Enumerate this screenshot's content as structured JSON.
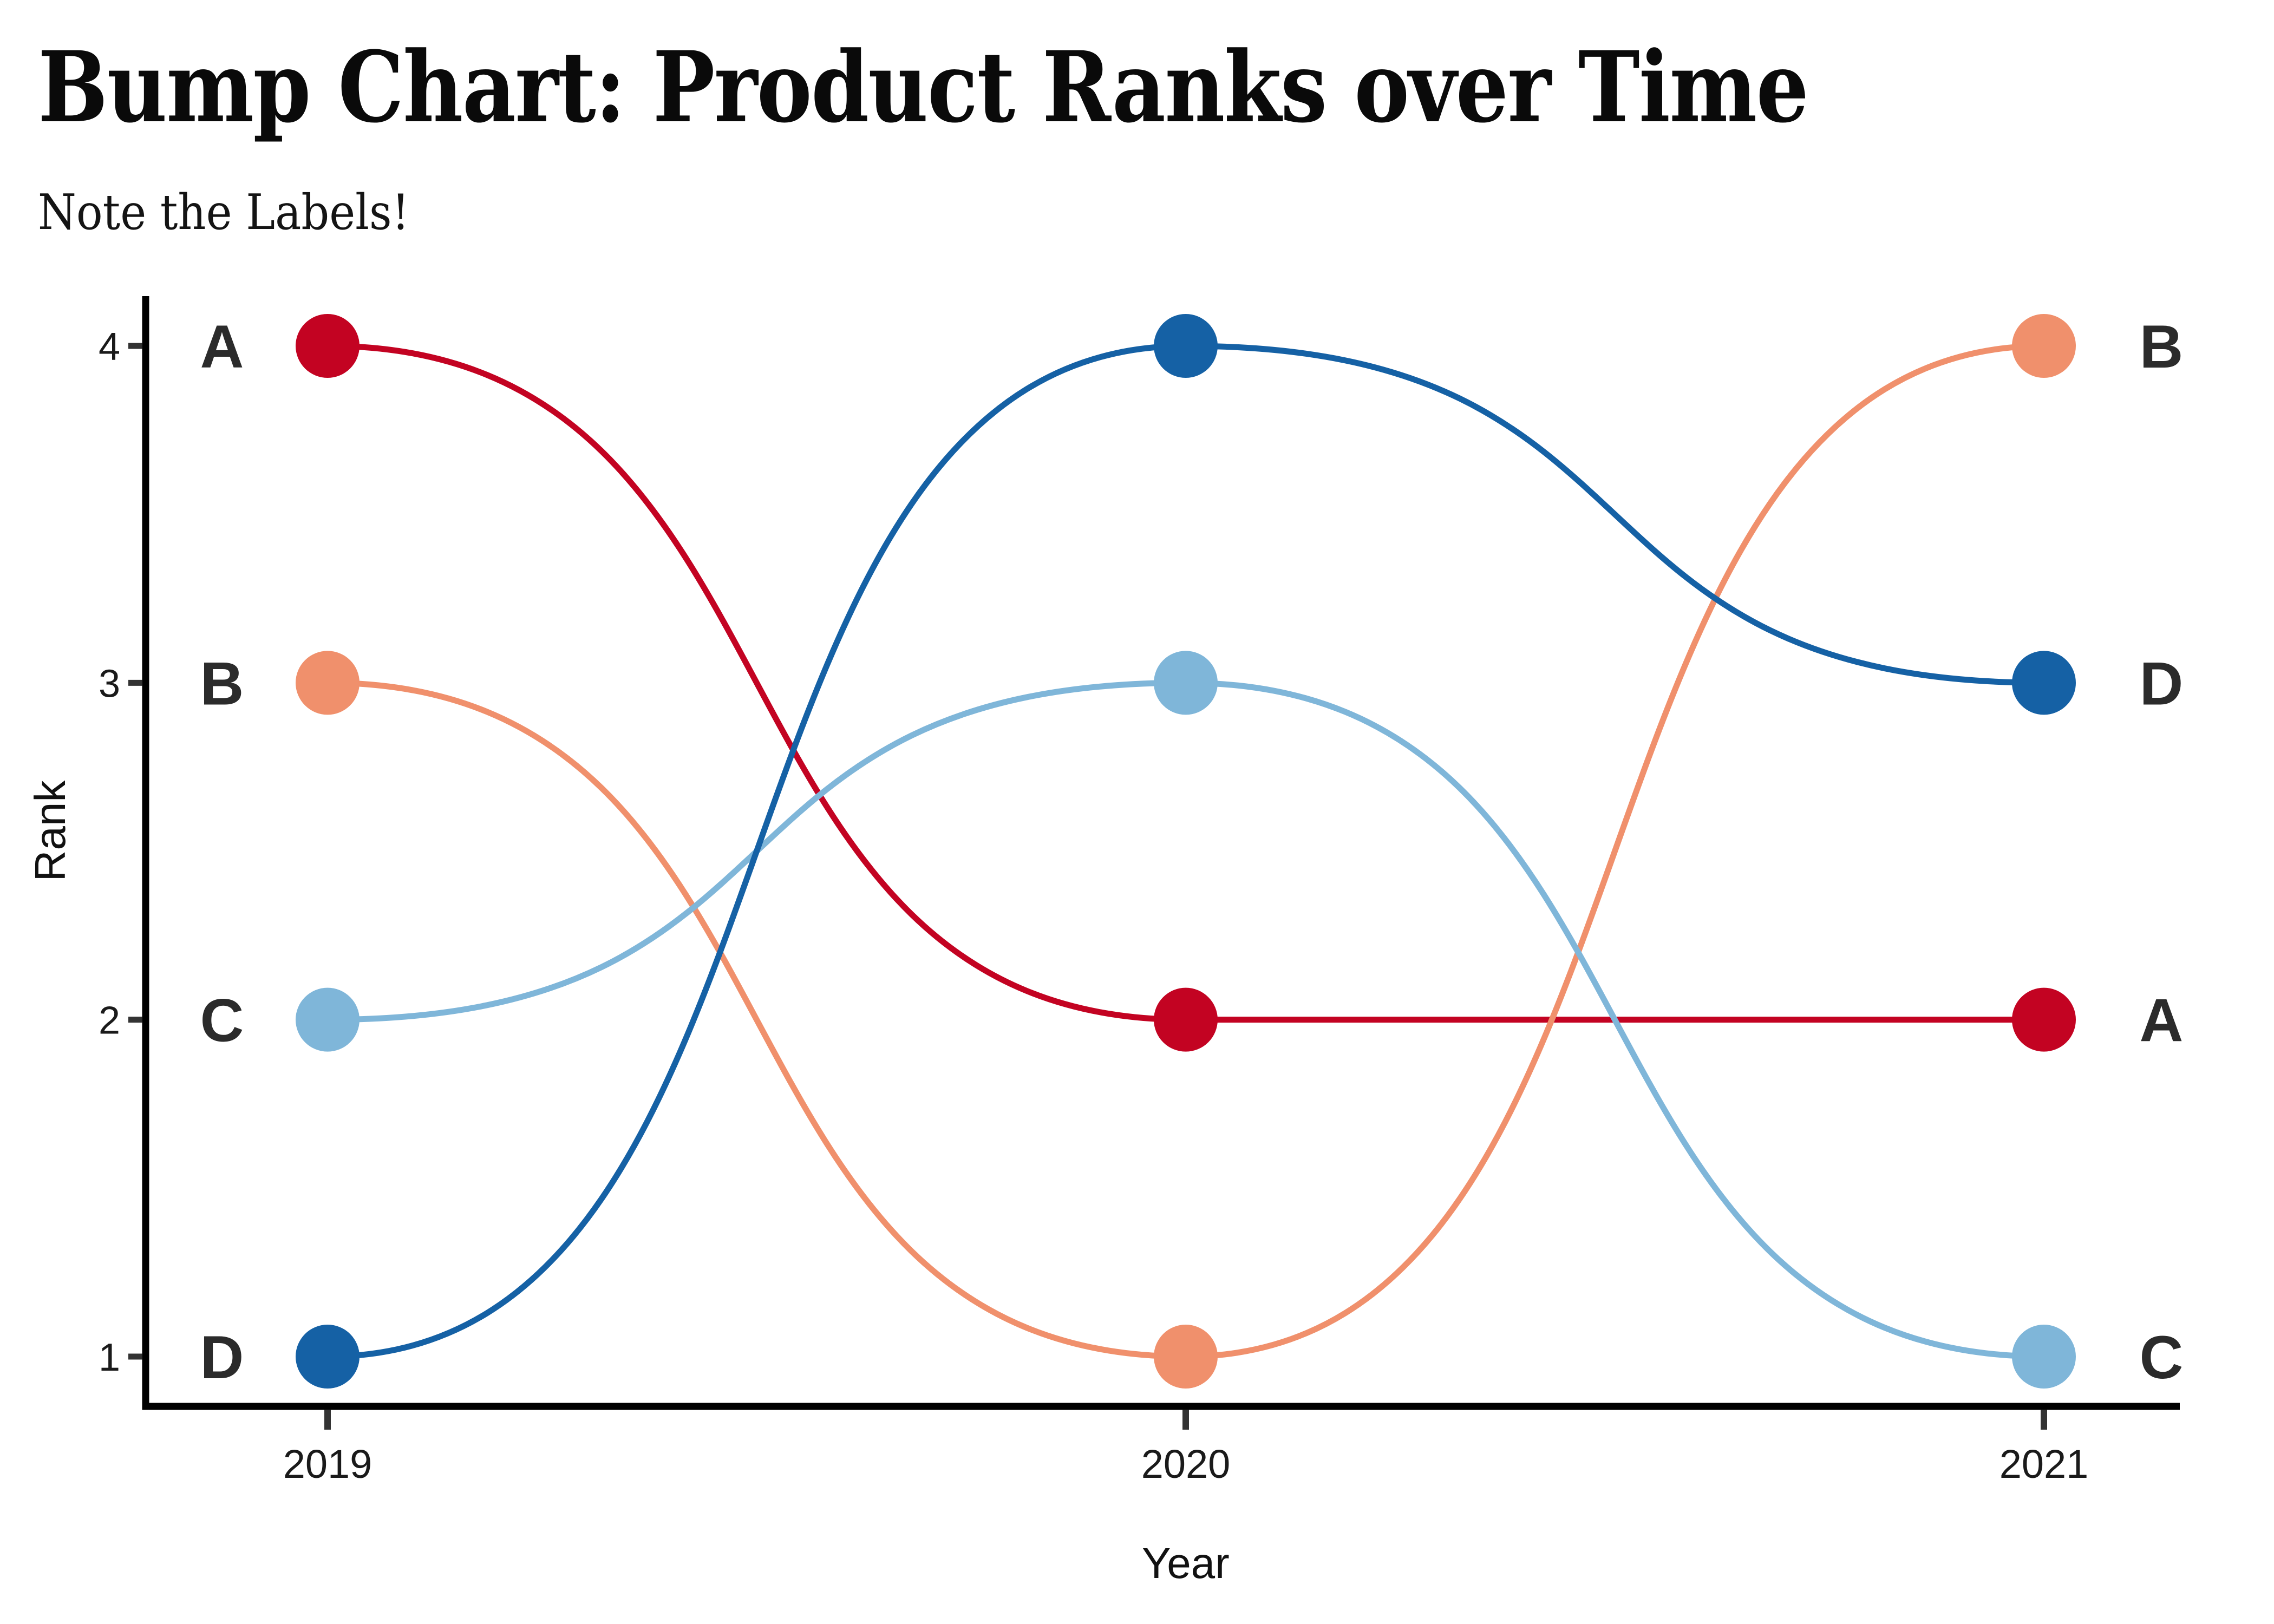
{
  "header": {
    "title": "Bump Chart: Product Ranks over Time",
    "subtitle": "Note the Labels!"
  },
  "chart_data": {
    "type": "line",
    "subtype": "bump",
    "title": "Bump Chart: Product Ranks over Time",
    "subtitle": "Note the Labels!",
    "xlabel": "Year",
    "ylabel": "Rank",
    "x": [
      2019,
      2020,
      2021
    ],
    "x_tick_labels": [
      "2019",
      "2020",
      "2021"
    ],
    "y_tick_labels": [
      "4",
      "3",
      "2",
      "1"
    ],
    "ylim": [
      1,
      4
    ],
    "y_axis_direction": "rank 4 at top, rank 1 at bottom",
    "grid": false,
    "legend": "none - series labeled directly at both line ends",
    "series": [
      {
        "name": "A",
        "color": "#C30322",
        "ranks": [
          4,
          2,
          2
        ],
        "start_label": "A",
        "end_label": "A"
      },
      {
        "name": "B",
        "color": "#F0906C",
        "ranks": [
          3,
          1,
          4
        ],
        "start_label": "B",
        "end_label": "B"
      },
      {
        "name": "C",
        "color": "#7FB6D9",
        "ranks": [
          2,
          3,
          1
        ],
        "start_label": "C",
        "end_label": "C"
      },
      {
        "name": "D",
        "color": "#1561A5",
        "ranks": [
          1,
          4,
          3
        ],
        "start_label": "D",
        "end_label": "D"
      }
    ],
    "colors": {
      "axis_line": "#000000",
      "tick_mark": "#333333",
      "tick_label": "#1a1a1a",
      "axis_title": "#111111",
      "series_label": "#2b2b2b",
      "background": "#ffffff"
    }
  }
}
